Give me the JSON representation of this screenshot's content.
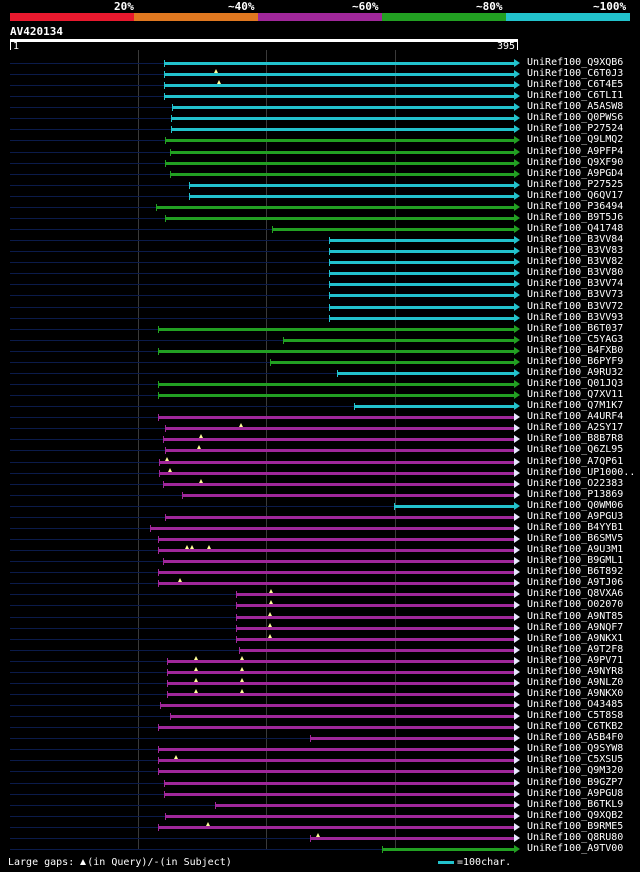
{
  "legend": [
    {
      "label": "20%",
      "color": "#e8192e"
    },
    {
      "label": "~40%",
      "color": "#e07820"
    },
    {
      "label": "~60%",
      "color": "#a0279a"
    },
    {
      "label": "~80%",
      "color": "#22a022"
    },
    {
      "label": "~100%",
      "color": "#22c2cc"
    }
  ],
  "query": {
    "name": "AV420134",
    "start": "1",
    "end": "395"
  },
  "hits": [
    {
      "name": "UniRef100_Q9XQB6",
      "c": "#22c2cc",
      "f": 0.304,
      "marks": []
    },
    {
      "name": "UniRef100_C6T0J3",
      "c": "#22c2cc",
      "f": 0.304,
      "marks": [
        0.406
      ]
    },
    {
      "name": "UniRef100_C6T4E5",
      "c": "#22c2cc",
      "f": 0.304,
      "marks": [
        0.411
      ]
    },
    {
      "name": "UniRef100_C6TLI1",
      "c": "#22c2cc",
      "f": 0.304,
      "marks": []
    },
    {
      "name": "UniRef100_A5ASW8",
      "c": "#22c2cc",
      "f": 0.319,
      "marks": []
    },
    {
      "name": "UniRef100_Q0PWS6",
      "c": "#22c2cc",
      "f": 0.316,
      "marks": []
    },
    {
      "name": "UniRef100_P27524",
      "c": "#22c2cc",
      "f": 0.316,
      "marks": []
    },
    {
      "name": "UniRef100_Q9LMQ2",
      "c": "#22a022",
      "f": 0.306,
      "marks": []
    },
    {
      "name": "UniRef100_A9PFP4",
      "c": "#22a022",
      "f": 0.314,
      "marks": []
    },
    {
      "name": "UniRef100_Q9XF90",
      "c": "#22a022",
      "f": 0.306,
      "marks": []
    },
    {
      "name": "UniRef100_A9PGD4",
      "c": "#22a022",
      "f": 0.314,
      "marks": []
    },
    {
      "name": "UniRef100_P27525",
      "c": "#22c2cc",
      "f": 0.353,
      "marks": []
    },
    {
      "name": "UniRef100_Q6QV17",
      "c": "#22c2cc",
      "f": 0.353,
      "marks": []
    },
    {
      "name": "UniRef100_P36494",
      "c": "#22a022",
      "f": 0.288,
      "marks": []
    },
    {
      "name": "UniRef100_B9T5J6",
      "c": "#22a022",
      "f": 0.306,
      "marks": []
    },
    {
      "name": "UniRef100_Q41748",
      "c": "#22a022",
      "f": 0.516,
      "marks": []
    },
    {
      "name": "UniRef100_B3VV84",
      "c": "#22c2cc",
      "f": 0.627,
      "marks": []
    },
    {
      "name": "UniRef100_B3VV83",
      "c": "#22c2cc",
      "f": 0.627,
      "marks": []
    },
    {
      "name": "UniRef100_B3VV82",
      "c": "#22c2cc",
      "f": 0.627,
      "marks": []
    },
    {
      "name": "UniRef100_B3VV80",
      "c": "#22c2cc",
      "f": 0.627,
      "marks": []
    },
    {
      "name": "UniRef100_B3VV74",
      "c": "#22c2cc",
      "f": 0.627,
      "marks": []
    },
    {
      "name": "UniRef100_B3VV73",
      "c": "#22c2cc",
      "f": 0.627,
      "marks": []
    },
    {
      "name": "UniRef100_B3VV72",
      "c": "#22c2cc",
      "f": 0.627,
      "marks": []
    },
    {
      "name": "UniRef100_B3VV93",
      "c": "#22c2cc",
      "f": 0.627,
      "marks": []
    },
    {
      "name": "UniRef100_B6T037",
      "c": "#22a022",
      "f": 0.291,
      "marks": []
    },
    {
      "name": "UniRef100_C5YAG3",
      "c": "#22a022",
      "f": 0.537,
      "marks": []
    },
    {
      "name": "UniRef100_B4FXB0",
      "c": "#22a022",
      "f": 0.291,
      "marks": []
    },
    {
      "name": "UniRef100_B6PYF9",
      "c": "#22a022",
      "f": 0.511,
      "marks": []
    },
    {
      "name": "UniRef100_A9RU32",
      "c": "#22c2cc",
      "f": 0.643,
      "marks": []
    },
    {
      "name": "UniRef100_Q01JQ3",
      "c": "#22a022",
      "f": 0.291,
      "marks": []
    },
    {
      "name": "UniRef100_Q7XV11",
      "c": "#22a022",
      "f": 0.291,
      "marks": []
    },
    {
      "name": "UniRef100_Q7M1K7",
      "c": "#22c2cc",
      "f": 0.678,
      "marks": []
    },
    {
      "name": "UniRef100_A4URF4",
      "c": "#a0279a",
      "f": 0.291,
      "marks": []
    },
    {
      "name": "UniRef100_A2SY17",
      "c": "#a0279a",
      "f": 0.306,
      "marks": [
        0.454
      ]
    },
    {
      "name": "UniRef100_B8B7R8",
      "c": "#a0279a",
      "f": 0.301,
      "marks": [
        0.376
      ]
    },
    {
      "name": "UniRef100_Q6ZL95",
      "c": "#a0279a",
      "f": 0.306,
      "marks": [
        0.373
      ]
    },
    {
      "name": "UniRef100_A7QP61",
      "c": "#a0279a",
      "f": 0.293,
      "marks": [
        0.309
      ]
    },
    {
      "name": "UniRef100_UP1000..",
      "c": "#a0279a",
      "f": 0.293,
      "marks": [
        0.314
      ]
    },
    {
      "name": "UniRef100_O22383",
      "c": "#a0279a",
      "f": 0.301,
      "marks": [
        0.376
      ]
    },
    {
      "name": "UniRef100_P13869",
      "c": "#a0279a",
      "f": 0.338,
      "marks": []
    },
    {
      "name": "UniRef100_Q0WM06",
      "c": "#22c2cc",
      "f": 0.756,
      "marks": []
    },
    {
      "name": "UniRef100_A9PGU3",
      "c": "#a0279a",
      "f": 0.306,
      "marks": []
    },
    {
      "name": "UniRef100_B4YYB1",
      "c": "#a0279a",
      "f": 0.276,
      "marks": []
    },
    {
      "name": "UniRef100_B6SMV5",
      "c": "#a0279a",
      "f": 0.291,
      "marks": []
    },
    {
      "name": "UniRef100_A9U3M1",
      "c": "#a0279a",
      "f": 0.291,
      "marks": [
        0.348,
        0.358,
        0.392
      ]
    },
    {
      "name": "UniRef100_B9GML1",
      "c": "#a0279a",
      "f": 0.301,
      "marks": []
    },
    {
      "name": "UniRef100_B6T892",
      "c": "#a0279a",
      "f": 0.291,
      "marks": []
    },
    {
      "name": "UniRef100_A9TJ06",
      "c": "#a0279a",
      "f": 0.291,
      "marks": [
        0.334
      ]
    },
    {
      "name": "UniRef100_Q8VXA6",
      "c": "#a0279a",
      "f": 0.444,
      "marks": [
        0.514
      ]
    },
    {
      "name": "UniRef100_O02070",
      "c": "#a0279a",
      "f": 0.444,
      "marks": [
        0.514
      ]
    },
    {
      "name": "UniRef100_A9NT85",
      "c": "#a0279a",
      "f": 0.444,
      "marks": [
        0.511
      ]
    },
    {
      "name": "UniRef100_A9NQF7",
      "c": "#a0279a",
      "f": 0.444,
      "marks": [
        0.511
      ]
    },
    {
      "name": "UniRef100_A9NKX1",
      "c": "#a0279a",
      "f": 0.444,
      "marks": [
        0.511
      ]
    },
    {
      "name": "UniRef100_A9T2F8",
      "c": "#a0279a",
      "f": 0.451,
      "marks": []
    },
    {
      "name": "UniRef100_A9PV71",
      "c": "#a0279a",
      "f": 0.309,
      "marks": [
        0.367,
        0.457
      ]
    },
    {
      "name": "UniRef100_A9NYR8",
      "c": "#a0279a",
      "f": 0.309,
      "marks": [
        0.367,
        0.457
      ]
    },
    {
      "name": "UniRef100_A9NLZ0",
      "c": "#a0279a",
      "f": 0.309,
      "marks": [
        0.367,
        0.457
      ]
    },
    {
      "name": "UniRef100_A9NKX0",
      "c": "#a0279a",
      "f": 0.309,
      "marks": [
        0.367,
        0.457
      ]
    },
    {
      "name": "UniRef100_O43485",
      "c": "#a0279a",
      "f": 0.296,
      "marks": []
    },
    {
      "name": "UniRef100_C5T8S8",
      "c": "#a0279a",
      "f": 0.314,
      "marks": []
    },
    {
      "name": "UniRef100_C6TKB2",
      "c": "#a0279a",
      "f": 0.291,
      "marks": []
    },
    {
      "name": "UniRef100_A5B4F0",
      "c": "#a0279a",
      "f": 0.59,
      "marks": []
    },
    {
      "name": "UniRef100_Q9SYW8",
      "c": "#a0279a",
      "f": 0.291,
      "marks": []
    },
    {
      "name": "UniRef100_C5XSU5",
      "c": "#a0279a",
      "f": 0.291,
      "marks": [
        0.327
      ]
    },
    {
      "name": "UniRef100_Q9M320",
      "c": "#a0279a",
      "f": 0.291,
      "marks": []
    },
    {
      "name": "UniRef100_B9GZP7",
      "c": "#a0279a",
      "f": 0.304,
      "marks": []
    },
    {
      "name": "UniRef100_A9PGU8",
      "c": "#a0279a",
      "f": 0.304,
      "marks": []
    },
    {
      "name": "UniRef100_B6TKL9",
      "c": "#a0279a",
      "f": 0.403,
      "marks": []
    },
    {
      "name": "UniRef100_Q9XQB2",
      "c": "#a0279a",
      "f": 0.306,
      "marks": []
    },
    {
      "name": "UniRef100_B9RME5",
      "c": "#a0279a",
      "f": 0.291,
      "marks": [
        0.39
      ]
    },
    {
      "name": "UniRef100_Q8RU80",
      "c": "#a0279a",
      "f": 0.59,
      "marks": [
        0.607
      ]
    },
    {
      "name": "UniRef100_A9TV00",
      "c": "#22a022",
      "f": 0.733,
      "marks": []
    }
  ],
  "footer": {
    "gaps_text": "Large gaps: ",
    "in_query_text": "(in Query)/",
    "in_subject_text": "(in Subject)",
    "scale_text": "=100char."
  }
}
